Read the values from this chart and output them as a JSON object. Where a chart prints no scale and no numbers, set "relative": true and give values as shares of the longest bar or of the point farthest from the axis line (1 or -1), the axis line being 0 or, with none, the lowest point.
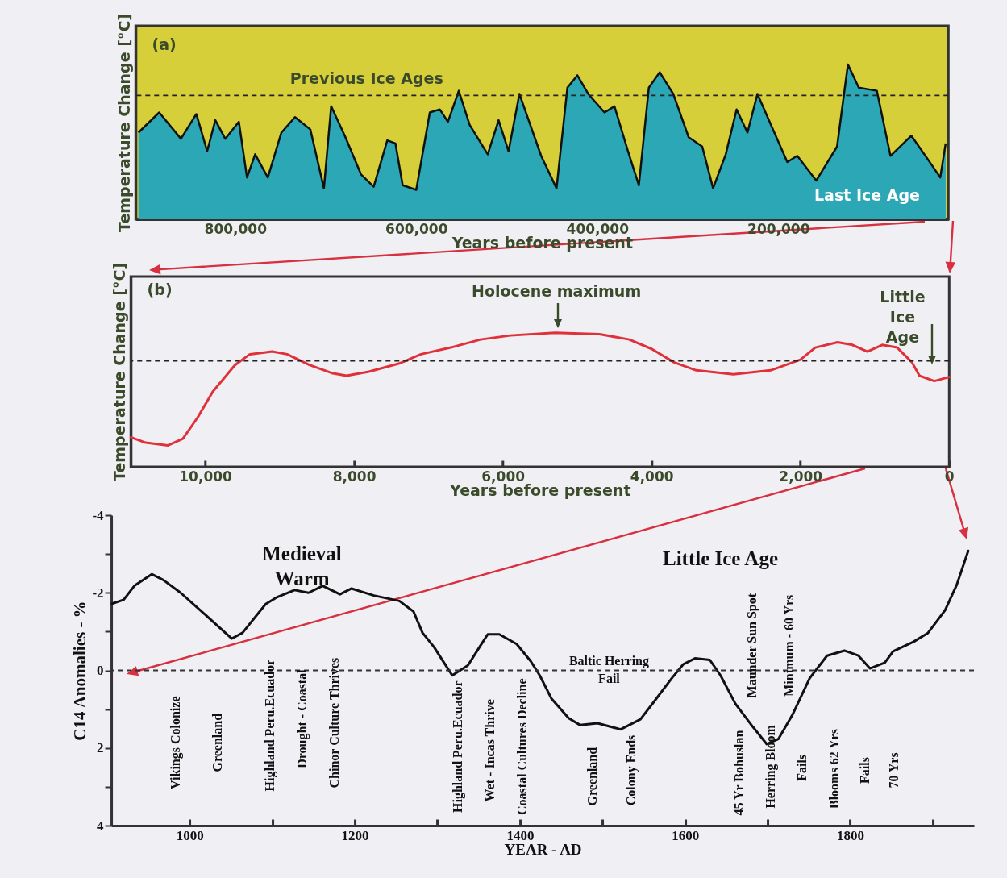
{
  "chart_data": [
    {
      "type": "area",
      "relative": true,
      "xlabel": "Years before present",
      "ylabel": "Temperature Change [°C]",
      "xlim": [
        910000,
        12000
      ],
      "xticks": [
        {
          "value": 800000,
          "label": "800,000"
        },
        {
          "value": 600000,
          "label": "600,000"
        },
        {
          "value": 400000,
          "label": "400,000"
        },
        {
          "value": 200000,
          "label": "200,000"
        }
      ],
      "tick_labels": "x",
      "grid": false,
      "x": [
        907000,
        884000,
        860000,
        843000,
        831000,
        822000,
        811000,
        796000,
        787000,
        778000,
        764000,
        749000,
        734000,
        717000,
        702000,
        694000,
        679000,
        661000,
        647000,
        632000,
        623000,
        615000,
        600000,
        585000,
        574000,
        565000,
        553000,
        541000,
        521000,
        509000,
        498000,
        486000,
        474000,
        462000,
        445000,
        433000,
        422000,
        410000,
        392000,
        381000,
        366000,
        354000,
        343000,
        331000,
        316000,
        299000,
        284000,
        272000,
        258000,
        246000,
        234000,
        223000,
        208000,
        190000,
        179000,
        158000,
        135000,
        123000,
        111000,
        91000,
        76000,
        53000,
        35000,
        21000,
        15000
      ],
      "series": [
        {
          "color": "#2ba7b5",
          "values": [
            0.56,
            0.69,
            0.52,
            0.68,
            0.44,
            0.64,
            0.52,
            0.63,
            0.27,
            0.42,
            0.27,
            0.56,
            0.66,
            0.58,
            0.2,
            0.73,
            0.54,
            0.29,
            0.21,
            0.51,
            0.49,
            0.22,
            0.19,
            0.69,
            0.71,
            0.63,
            0.83,
            0.61,
            0.42,
            0.64,
            0.44,
            0.81,
            0.61,
            0.41,
            0.2,
            0.85,
            0.93,
            0.81,
            0.69,
            0.73,
            0.44,
            0.22,
            0.85,
            0.95,
            0.81,
            0.53,
            0.47,
            0.2,
            0.42,
            0.71,
            0.56,
            0.81,
            0.61,
            0.37,
            0.41,
            0.25,
            0.47,
            1,
            0.85,
            0.83,
            0.41,
            0.54,
            0.39,
            0.27,
            0.49
          ]
        }
      ],
      "ref_lines": [
        {
          "axis": "y",
          "value": 0.8,
          "label": "Previous Ice Ages",
          "color": "#222222",
          "line_style": "dashed"
        }
      ],
      "annotations": [
        "(a)",
        "Last Ice Age"
      ]
    },
    {
      "type": "line",
      "relative": true,
      "xlabel": "Years before present",
      "ylabel": "Temperature Change [°C]",
      "xlim": [
        11000,
        0
      ],
      "xticks": [
        {
          "value": 10000,
          "label": "10,000"
        },
        {
          "value": 8000,
          "label": "8,000"
        },
        {
          "value": 6000,
          "label": "6,000"
        },
        {
          "value": 4000,
          "label": "4,000"
        },
        {
          "value": 2000,
          "label": "2,000"
        },
        0
      ],
      "tick_labels": "x",
      "grid": false,
      "x": [
        11000,
        10800,
        10500,
        10300,
        10100,
        9900,
        9600,
        9400,
        9100,
        8900,
        8600,
        8300,
        8100,
        7800,
        7400,
        7100,
        6700,
        6300,
        5900,
        5300,
        4700,
        4300,
        4000,
        3700,
        3400,
        2900,
        2400,
        2000,
        1800,
        1500,
        1300,
        1100,
        900,
        700,
        500,
        400,
        200,
        0
      ],
      "series": [
        {
          "color": "#e0303a",
          "values": [
            0.22,
            0.18,
            0.16,
            0.21,
            0.37,
            0.56,
            0.76,
            0.84,
            0.86,
            0.84,
            0.76,
            0.7,
            0.68,
            0.71,
            0.77,
            0.84,
            0.89,
            0.95,
            0.98,
            1,
            0.99,
            0.95,
            0.88,
            0.78,
            0.72,
            0.69,
            0.72,
            0.8,
            0.89,
            0.93,
            0.91,
            0.86,
            0.91,
            0.89,
            0.78,
            0.68,
            0.64,
            0.67
          ]
        }
      ],
      "ref_lines": [
        {
          "axis": "y",
          "value": 0.79,
          "color": "#222222",
          "line_style": "dashed"
        }
      ],
      "annotations": [
        "(b)",
        "Holocene maximum",
        "Little\nIce\nAge"
      ]
    },
    {
      "type": "line",
      "xlabel": "YEAR - AD",
      "ylabel": "C14 Anomalies - %",
      "xlim": [
        905,
        1950
      ],
      "ylim": [
        4,
        -4
      ],
      "xticks": [
        1000,
        {
          "value": 1100,
          "label": null
        },
        1200,
        {
          "value": 1300,
          "label": null
        },
        1400,
        {
          "value": 1500,
          "label": null
        },
        1600,
        {
          "value": 1700,
          "label": null
        },
        1800,
        {
          "value": 1900,
          "label": null
        }
      ],
      "yticks": [
        -4,
        {
          "value": -3,
          "label": null
        },
        -2,
        {
          "value": -1,
          "label": null
        },
        0,
        {
          "value": 1,
          "label": null
        },
        2,
        {
          "value": 3,
          "label": null
        },
        4
      ],
      "grid": false,
      "x": [
        906,
        920,
        933,
        954,
        968,
        989,
        1016,
        1051,
        1064,
        1092,
        1106,
        1127,
        1144,
        1161,
        1182,
        1196,
        1223,
        1254,
        1271,
        1282,
        1296,
        1308,
        1318,
        1337,
        1351,
        1361,
        1375,
        1396,
        1413,
        1424,
        1438,
        1459,
        1473,
        1494,
        1522,
        1546,
        1563,
        1584,
        1598,
        1612,
        1630,
        1643,
        1661,
        1682,
        1699,
        1713,
        1730,
        1751,
        1772,
        1793,
        1810,
        1824,
        1842,
        1852,
        1877,
        1894,
        1915,
        1929,
        1943
      ],
      "series": [
        {
          "color": "#111111",
          "values": [
            -1.72,
            -1.82,
            -2.18,
            -2.48,
            -2.33,
            -2.0,
            -1.49,
            -0.82,
            -0.97,
            -1.71,
            -1.89,
            -2.07,
            -2.0,
            -2.18,
            -1.96,
            -2.11,
            -1.93,
            -1.79,
            -1.52,
            -0.97,
            -0.6,
            -0.2,
            0.13,
            -0.13,
            -0.6,
            -0.93,
            -0.93,
            -0.68,
            -0.24,
            0.13,
            0.72,
            1.23,
            1.41,
            1.36,
            1.52,
            1.26,
            0.79,
            0.2,
            -0.16,
            -0.31,
            -0.27,
            0.13,
            0.86,
            1.45,
            1.9,
            1.77,
            1.15,
            0.2,
            -0.38,
            -0.51,
            -0.38,
            -0.05,
            -0.2,
            -0.49,
            -0.74,
            -0.96,
            -1.55,
            -2.2,
            -3.08
          ]
        }
      ],
      "ref_lines": [
        {
          "axis": "y",
          "value": 0,
          "color": "#333333",
          "line_style": "dashed"
        }
      ],
      "annotations": [
        "Medieval\nWarm",
        "Little Ice Age",
        "Baltic Herring\nFail",
        "Vikings Colonize",
        "Greenland",
        "Highland Peru.Ecuador",
        "Drought - Coastal",
        "Chinor Culture Thrives",
        "Highland Peru.Ecuador",
        "Wet - Incas Thrive",
        "Coastal Cultures Decline",
        "Greenland",
        "Colony Ends",
        "45 Yr Bohuslan",
        "Herring Bloom",
        "Fails",
        "Maunder Sun Spot",
        "Minimum - 60 Yrs",
        "Blooms 62 Yrs",
        "Fails",
        "70 Yrs"
      ]
    }
  ]
}
